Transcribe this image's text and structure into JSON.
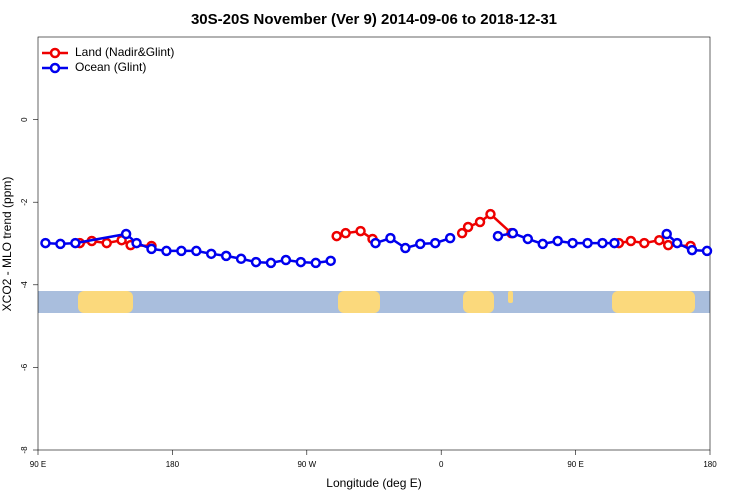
{
  "chart_data": {
    "type": "line",
    "title": "30S-20S November (Ver 9)   2014-09-06 to 2018-12-31",
    "x_label": "Longitude (deg E)",
    "y_label": "XCO2 - MLO trend (ppm)",
    "xlim": [
      90,
      540
    ],
    "xticks": [
      {
        "value": 90,
        "label": "90 E"
      },
      180,
      {
        "value": 270,
        "label": "90 W"
      },
      {
        "value": 360,
        "label": "0"
      },
      {
        "value": 450,
        "label": "90 E"
      },
      {
        "value": 540,
        "label": "180"
      }
    ],
    "ylim": [
      -8,
      2
    ],
    "yticks": [
      -8,
      -6,
      -4,
      -2,
      0
    ],
    "legend": "top-left",
    "series": [
      {
        "name": "Land (Nadir&Glint)",
        "color": "#ee0000",
        "x": [
          118,
          126,
          136,
          146,
          152,
          166,
          null,
          290,
          296,
          306,
          314,
          null,
          374,
          378,
          386,
          393,
          407,
          null,
          479,
          487,
          496,
          506,
          512,
          527
        ],
        "values": [
          -2.99,
          -2.94,
          -2.99,
          -2.92,
          -3.04,
          -3.06,
          null,
          -2.82,
          -2.75,
          -2.7,
          -2.89,
          null,
          -2.75,
          -2.6,
          -2.48,
          -2.29,
          -2.75,
          null,
          -2.99,
          -2.94,
          -2.99,
          -2.92,
          -3.04,
          -3.06
        ]
      },
      {
        "name": "Ocean (Glint)",
        "color": "#0000ee",
        "x": [
          95,
          105,
          115,
          149,
          156,
          166,
          176,
          186,
          196,
          206,
          216,
          226,
          236,
          246,
          256,
          266,
          276,
          286,
          null,
          316,
          326,
          336,
          346,
          356,
          366,
          null,
          398,
          408,
          418,
          428,
          438,
          448,
          458,
          468,
          476,
          null,
          511,
          518,
          528,
          538
        ],
        "values": [
          -2.99,
          -3.01,
          -2.99,
          -2.77,
          -2.99,
          -3.13,
          -3.18,
          -3.18,
          -3.18,
          -3.25,
          -3.3,
          -3.37,
          -3.45,
          -3.47,
          -3.4,
          -3.45,
          -3.47,
          -3.42,
          null,
          -2.99,
          -2.87,
          -3.11,
          -3.01,
          -2.99,
          -2.87,
          null,
          -2.82,
          -2.75,
          -2.89,
          -3.01,
          -2.94,
          -2.99,
          -2.99,
          -2.99,
          -2.99,
          null,
          -2.77,
          -2.99,
          -3.16,
          -3.18
        ]
      }
    ]
  }
}
